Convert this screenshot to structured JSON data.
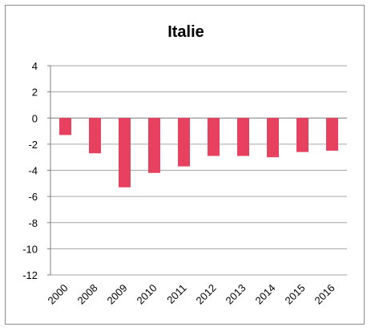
{
  "chart_data": {
    "type": "bar",
    "title": "Italie",
    "categories": [
      "2000",
      "2008",
      "2009",
      "2010",
      "2011",
      "2012",
      "2013",
      "2014",
      "2015",
      "2016"
    ],
    "values": [
      -1.3,
      -2.7,
      -5.3,
      -4.2,
      -3.7,
      -2.9,
      -2.9,
      -3.0,
      -2.6,
      -2.5
    ],
    "ylim": [
      -12,
      4
    ],
    "yticks": [
      4,
      2,
      0,
      -2,
      -4,
      -6,
      -8,
      -10,
      -12
    ],
    "xlabel": "",
    "ylabel": "",
    "grid": true,
    "bar_color": "#e8415f",
    "grid_color": "#a6a6a6"
  }
}
